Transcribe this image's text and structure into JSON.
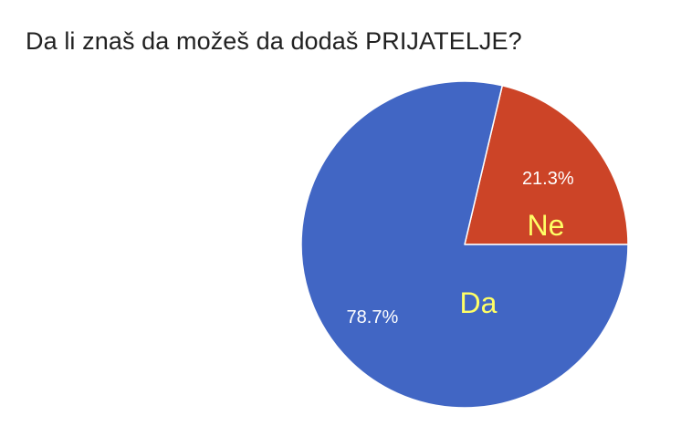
{
  "chart_data": {
    "type": "pie",
    "title": "Da li znaš da možeš da dodaš PRIJATELJE?",
    "slices": [
      {
        "label": "Ne",
        "value": 21.3,
        "display": "21.3%",
        "color": "#cc4427"
      },
      {
        "label": "Da",
        "value": 78.7,
        "display": "78.7%",
        "color": "#4166c4"
      }
    ],
    "start": "3 o'clock, counter-clockwise",
    "slice_border_color": "#ffffff",
    "category_label_color": "#ffff66",
    "legend": "none"
  }
}
